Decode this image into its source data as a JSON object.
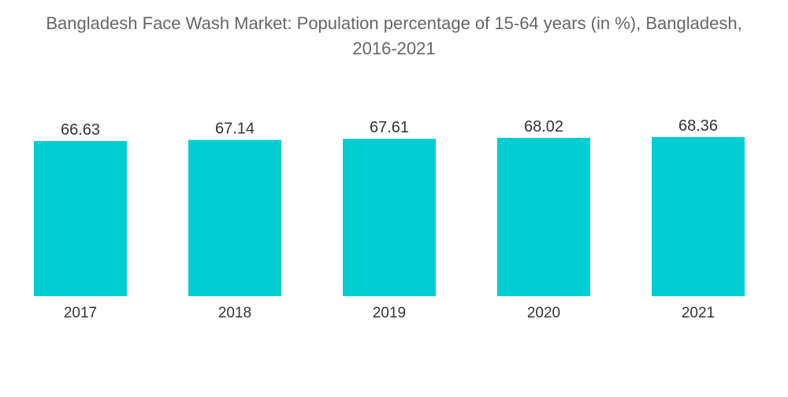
{
  "chart_data": {
    "type": "bar",
    "title_lines": [
      "Bangladesh Face Wash Market: Population percentage of 15-64 years (in %), Bangladesh,",
      "2016-2021"
    ],
    "categories": [
      "2017",
      "2018",
      "2019",
      "2020",
      "2021"
    ],
    "values": [
      66.63,
      67.14,
      67.61,
      68.02,
      68.36
    ],
    "data_labels": [
      "66.63",
      "67.14",
      "67.61",
      "68.02",
      "68.36"
    ],
    "bar_color": "#00CED1",
    "xlabel": "",
    "ylabel": "",
    "grid": false,
    "legend": false,
    "ylim": [
      0,
      68.36
    ]
  }
}
